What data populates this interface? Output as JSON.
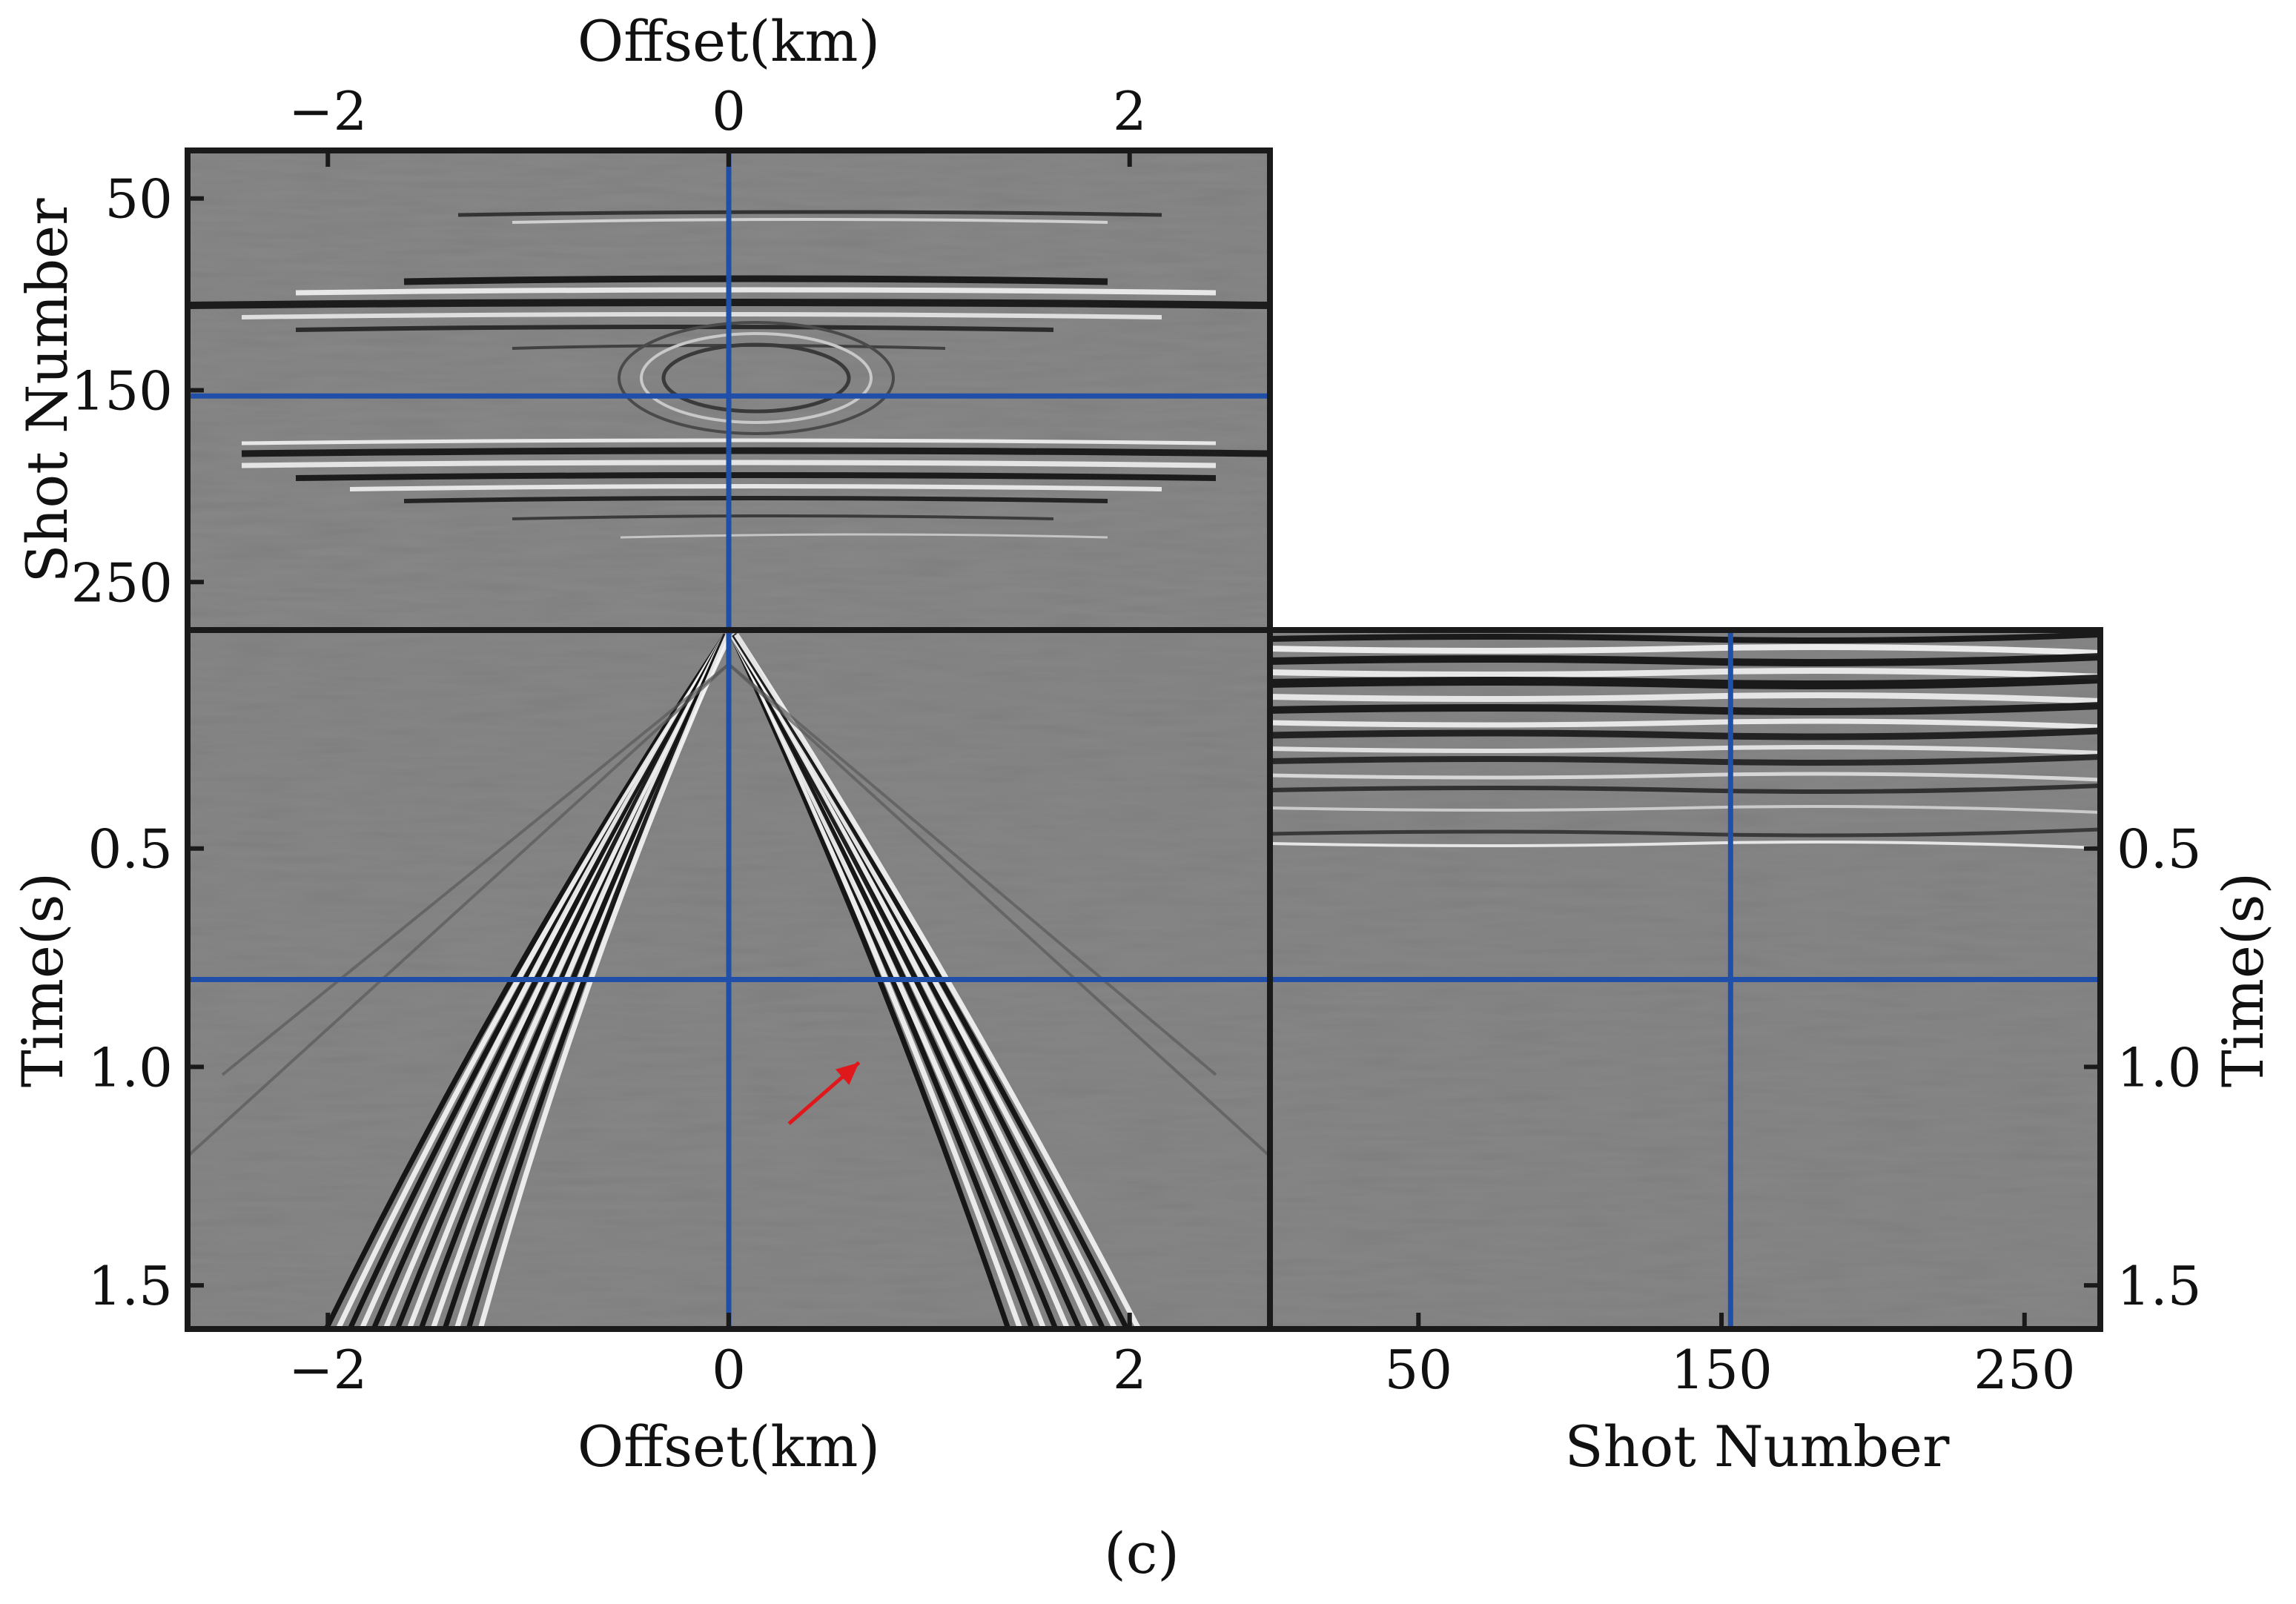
{
  "figure": {
    "caption": "(c)"
  },
  "colors": {
    "background": "#7f7f7f",
    "crosshair": "#1f4fa8",
    "arrow": "#e0171b",
    "frame": "#1a1a1a"
  },
  "chart_data": [
    {
      "id": "shot-offset-panel",
      "type": "heatmap",
      "title": "",
      "colormap": "gray",
      "xlabel": "Offset(km)",
      "xlabel_position": "top",
      "ylabel": "Shot Number",
      "xlim": [
        -2.7,
        2.7
      ],
      "ylim": [
        275,
        25
      ],
      "xticks": [
        -2,
        0,
        2
      ],
      "xtick_labels": [
        "−2",
        "0",
        "2"
      ],
      "yticks": [
        50,
        150,
        250
      ],
      "ytick_labels": [
        "50",
        "150",
        "250"
      ],
      "crosshair": {
        "x": 0,
        "y": 153
      },
      "grid": false
    },
    {
      "id": "time-offset-panel",
      "type": "heatmap",
      "title": "",
      "colormap": "gray",
      "xlabel": "Offset(km)",
      "ylabel": "Time(s)",
      "xlim": [
        -2.7,
        2.7
      ],
      "ylim": [
        1.6,
        0.0
      ],
      "xticks": [
        -2,
        0,
        2
      ],
      "xtick_labels": [
        "−2",
        "0",
        "2"
      ],
      "yticks": [
        0.5,
        1.0,
        1.5
      ],
      "ytick_labels": [
        "0.5",
        "1.0",
        "1.5"
      ],
      "crosshair": {
        "x": 0,
        "y": 0.8
      },
      "annotation": {
        "kind": "arrow",
        "color": "#e0171b",
        "from": [
          0.3,
          1.13
        ],
        "to": [
          0.65,
          0.99
        ]
      },
      "grid": false
    },
    {
      "id": "time-shot-panel",
      "type": "heatmap",
      "title": "",
      "colormap": "gray",
      "xlabel": "Shot Number",
      "ylabel": "Time(s)",
      "ylabel_position": "right",
      "xlim": [
        1,
        275
      ],
      "ylim": [
        1.6,
        0.0
      ],
      "xticks": [
        50,
        150,
        250
      ],
      "xtick_labels": [
        "50",
        "150",
        "250"
      ],
      "yticks": [
        0.5,
        1.0,
        1.5
      ],
      "ytick_labels": [
        "0.5",
        "1.0",
        "1.5"
      ],
      "crosshair": {
        "x": 153,
        "y": 0.8
      },
      "grid": false
    }
  ]
}
